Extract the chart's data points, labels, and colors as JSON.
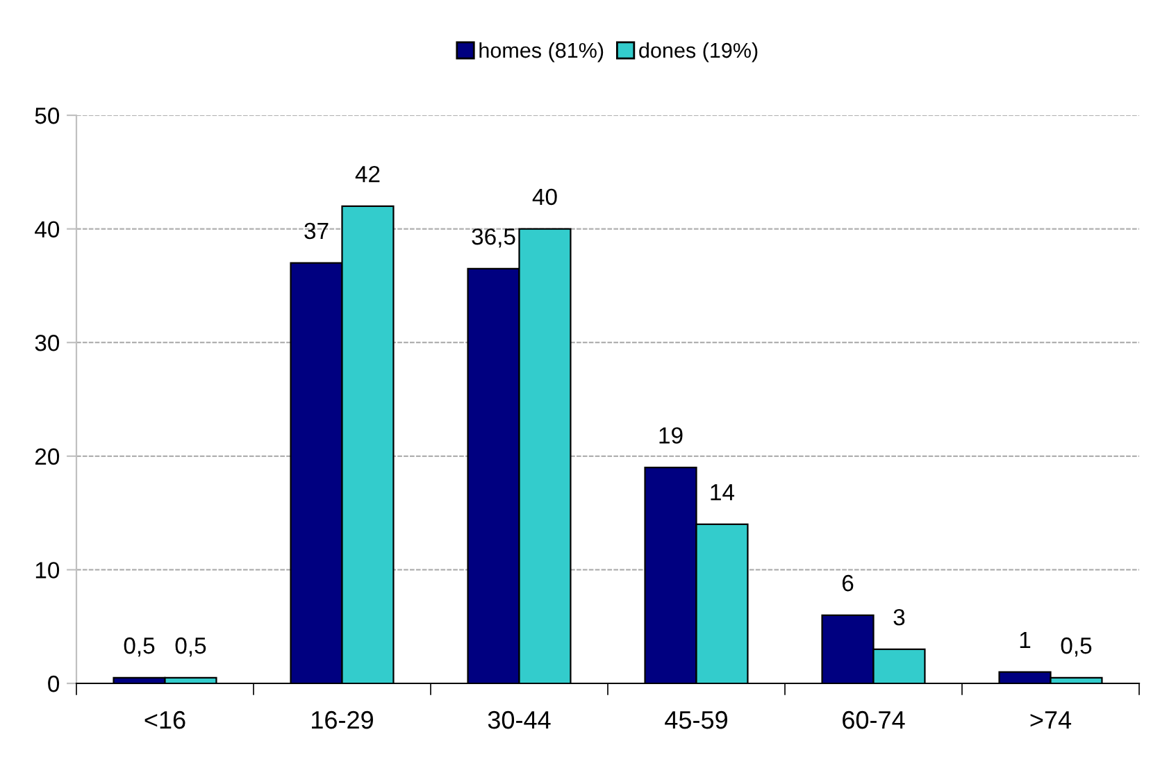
{
  "chart_data": {
    "type": "bar",
    "categories": [
      "<16",
      "16-29",
      "30-44",
      "45-59",
      "60-74",
      ">74"
    ],
    "series": [
      {
        "name": "homes (81%)",
        "color": "#000080",
        "values": [
          0.5,
          37,
          36.5,
          19,
          6,
          1
        ],
        "value_labels": [
          "0,5",
          "37",
          "36,5",
          "19",
          "6",
          "1"
        ]
      },
      {
        "name": "dones (19%)",
        "color": "#33cccc",
        "values": [
          0.5,
          42,
          40,
          14,
          3,
          0.5
        ],
        "value_labels": [
          "0,5",
          "42",
          "40",
          "14",
          "3",
          "0,5"
        ]
      }
    ],
    "ylim": [
      0,
      50
    ],
    "yticks": [
      0,
      10,
      20,
      30,
      40,
      50
    ],
    "grid": "y",
    "legend": "top"
  }
}
